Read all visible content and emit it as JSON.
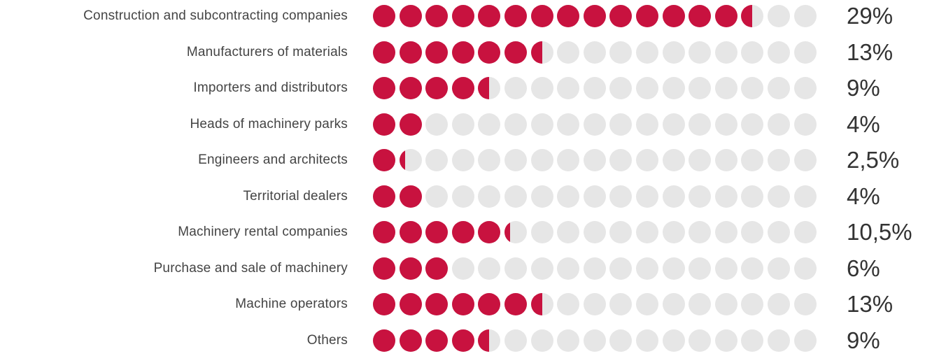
{
  "colors": {
    "filled": "#c8123f",
    "empty": "#e6e6e6",
    "category_text": "#444444",
    "value_text": "#333333"
  },
  "chart_data": {
    "type": "bar",
    "subtype": "dot-matrix",
    "dots_per_row": 17,
    "max_value": 34,
    "units": "%",
    "categories": [
      "Construction and subcontracting companies",
      "Manufacturers of materials",
      "Importers and distributors",
      "Heads of machinery parks",
      "Engineers and architects",
      "Territorial dealers",
      "Machinery rental companies",
      "Purchase and sale of machinery",
      "Machine operators",
      "Others"
    ],
    "values": [
      29,
      13,
      9,
      4,
      2.5,
      4,
      10.5,
      6,
      13,
      9
    ],
    "value_labels": [
      "29%",
      "13%",
      "9%",
      "4%",
      "2,5%",
      "4%",
      "10,5%",
      "6%",
      "13%",
      "9%"
    ]
  }
}
